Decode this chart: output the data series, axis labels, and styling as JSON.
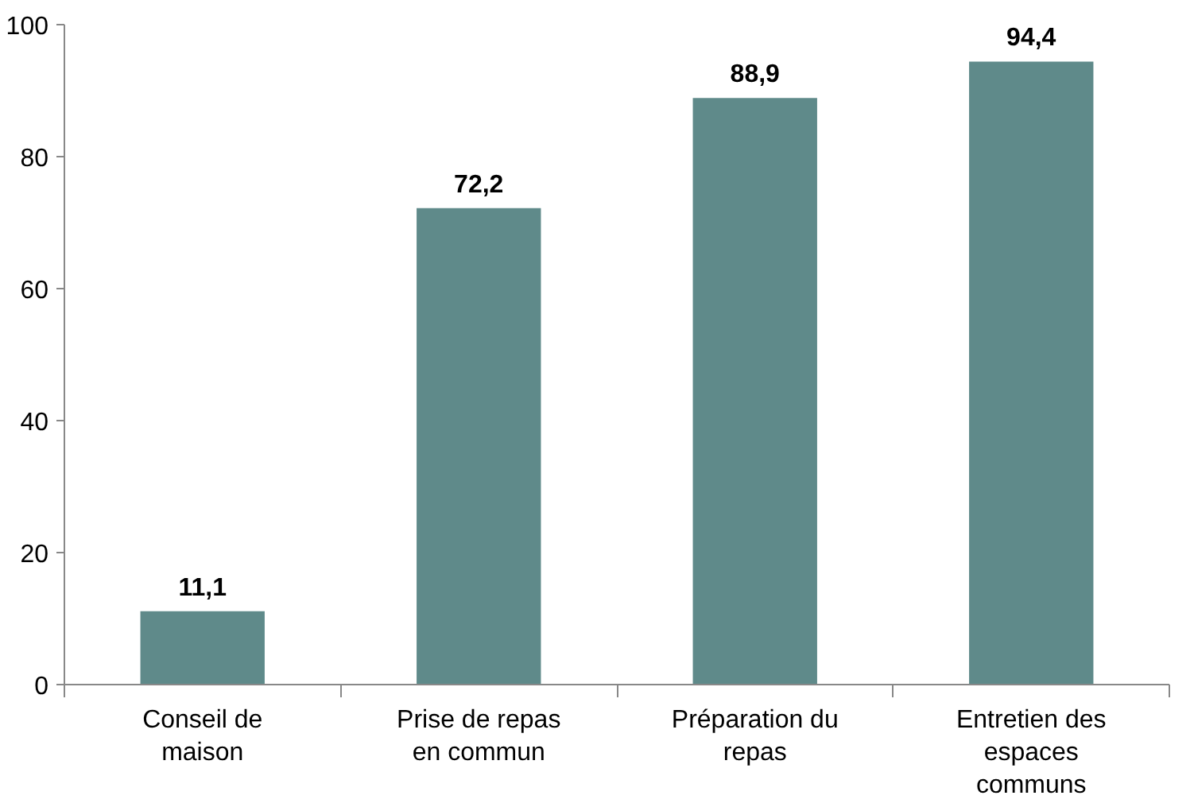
{
  "chart_data": {
    "type": "bar",
    "categories": [
      "Conseil de maison",
      "Prise de repas en commun",
      "Préparation du repas",
      "Entretien des espaces communs"
    ],
    "values": [
      11.1,
      72.2,
      88.9,
      94.4
    ],
    "value_labels": [
      "11,1",
      "72,2",
      "88,9",
      "94,4"
    ],
    "color": "#5f8a8a",
    "ylim": [
      0,
      100
    ],
    "yticks": [
      0,
      20,
      40,
      60,
      80,
      100
    ],
    "grid": false
  }
}
